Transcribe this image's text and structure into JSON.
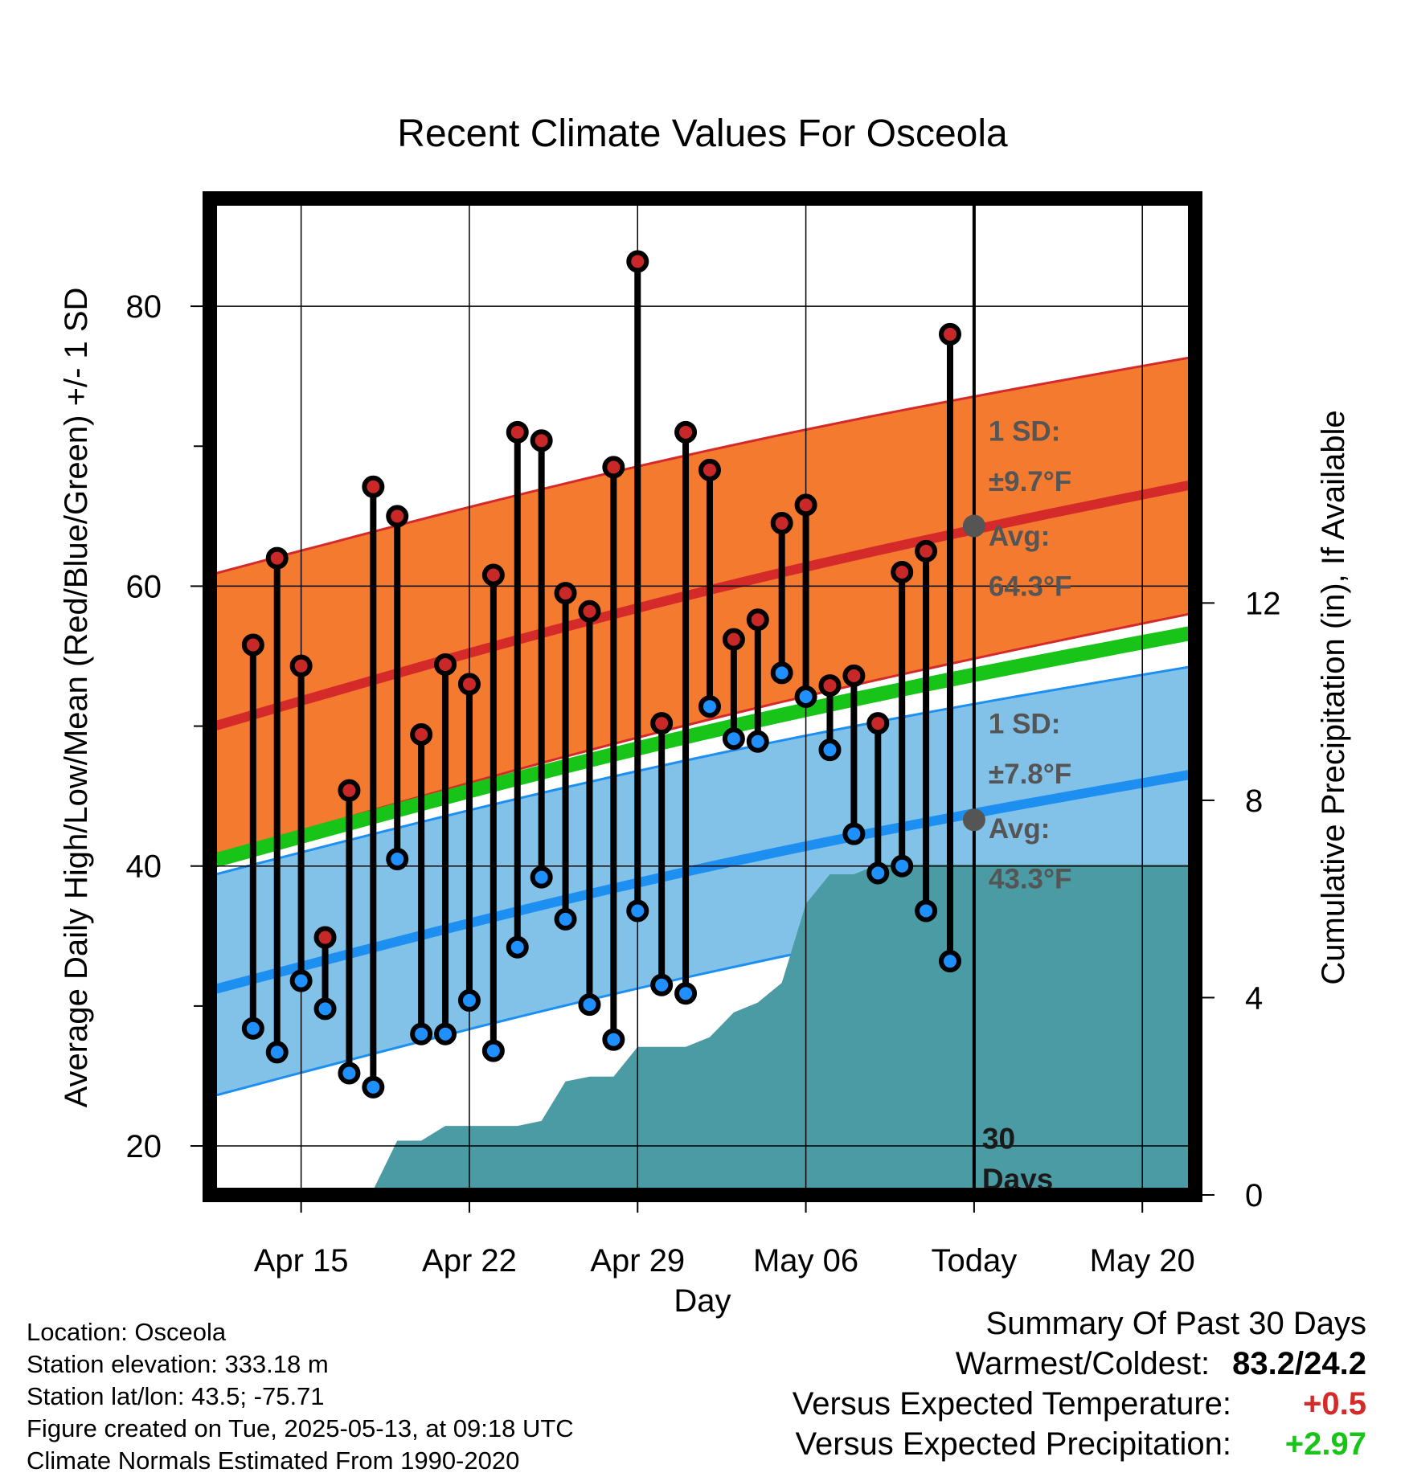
{
  "chart_data": {
    "type": "line",
    "title": "Recent Climate Values For Osceola",
    "xlabel": "Day",
    "ylabel": "Average Daily High/Low/Mean (Red/Blue/Green) +/- 1 SD",
    "ylabel_right": "Cumulative Precipitation (in), If Available",
    "x_tick_labels": [
      "Apr 15",
      "Apr 22",
      "Apr 29",
      "May 06",
      "Today",
      "May 20"
    ],
    "x_tick_days": [
      3,
      10,
      17,
      24,
      31,
      38
    ],
    "xlim_days": [
      -0.8,
      40.2
    ],
    "ylim": [
      16.5,
      87.7
    ],
    "y_ticks": [
      20,
      40,
      60,
      80
    ],
    "y_minor_ticks": [
      30,
      50,
      70
    ],
    "precip_ylim": [
      0,
      20.2
    ],
    "precip_ticks": [
      0,
      4,
      8,
      12
    ],
    "x_start_date": "Apr 12",
    "grid": true,
    "days": [
      1,
      2,
      3,
      4,
      5,
      6,
      7,
      8,
      9,
      10,
      11,
      12,
      13,
      14,
      15,
      16,
      17,
      18,
      19,
      20,
      21,
      22,
      23,
      24,
      25,
      26,
      27,
      28,
      29,
      30
    ],
    "daily_high": [
      55.8,
      62.0,
      54.3,
      34.9,
      45.4,
      67.1,
      65.0,
      49.4,
      54.4,
      53.0,
      60.8,
      71.0,
      70.4,
      59.5,
      58.2,
      68.5,
      83.2,
      50.2,
      71.0,
      68.3,
      56.2,
      57.6,
      64.5,
      65.8,
      52.9,
      53.6,
      50.2,
      61.0,
      62.5,
      78.0
    ],
    "daily_low": [
      28.4,
      26.7,
      31.8,
      29.8,
      25.2,
      24.2,
      40.5,
      28.0,
      28.0,
      30.4,
      26.8,
      34.2,
      39.2,
      36.2,
      30.1,
      27.6,
      36.8,
      31.5,
      30.9,
      51.4,
      49.1,
      48.9,
      53.8,
      52.1,
      48.3,
      42.3,
      39.5,
      40.0,
      36.8,
      33.2
    ],
    "normal": {
      "days": [
        -0.8,
        40.2
      ],
      "avg_high": [
        49.9,
        67.3
      ],
      "high_upper": [
        60.8,
        76.4
      ],
      "high_lower": [
        40.6,
        58.1
      ],
      "avg_mean": [
        40.3,
        56.7
      ],
      "avg_low": [
        31.1,
        46.6
      ],
      "low_upper": [
        39.3,
        54.3
      ],
      "low_lower": [
        23.5,
        39.1
      ]
    },
    "precip_cumulative": {
      "days": [
        -0.8,
        3.0,
        4.0,
        5.0,
        6.0,
        7.0,
        8.0,
        9.0,
        10.0,
        11.0,
        12.0,
        13.0,
        14.0,
        15.0,
        16.0,
        17.0,
        18.0,
        19.0,
        20.0,
        21.0,
        22.0,
        23.0,
        24.0,
        25.0,
        26.0,
        27.0,
        28.0,
        29.0,
        30.0,
        31.0,
        40.2
      ],
      "values": [
        0.0,
        0.0,
        0.1,
        0.1,
        0.1,
        1.1,
        1.1,
        1.4,
        1.4,
        1.4,
        1.4,
        1.5,
        2.3,
        2.4,
        2.4,
        3.0,
        3.0,
        3.0,
        3.2,
        3.7,
        3.9,
        4.3,
        5.9,
        6.5,
        6.5,
        6.7,
        6.7,
        6.7,
        6.7,
        6.7,
        6.7
      ]
    },
    "annotations": {
      "high_sd": "1 SD:",
      "high_sd_value": "±9.7°F",
      "high_avg": "Avg:",
      "high_avg_value": "64.3°F",
      "low_sd": "1 SD:",
      "low_sd_value": "±7.8°F",
      "low_avg": "Avg:",
      "low_avg_value": "43.3°F",
      "days_count": "30",
      "days_label": "Days"
    },
    "colors": {
      "high_band": "#f47a30",
      "high_line": "#d42a2a",
      "high_band_edge": "#d42a2a",
      "mean_line": "#19c419",
      "low_band": "#82c2e8",
      "low_line": "#1c8ff0",
      "low_band_edge": "#1c8ff0",
      "precip": "#4a9ba3",
      "high_marker": "#c82828",
      "low_marker": "#1e90ff",
      "avg_marker": "#555555",
      "annotation_text": "#555555"
    }
  },
  "station": {
    "location": "Location: Osceola",
    "elevation": "Station elevation: 333.18 m",
    "latlon": "Station lat/lon: 43.5; -75.71",
    "created": "Figure created on Tue, 2025-05-13, at 09:18 UTC",
    "normals": "Climate Normals Estimated From 1990-2020"
  },
  "summary": {
    "heading": "Summary Of Past 30 Days",
    "warm_cold_label": "Warmest/Coldest:",
    "warm_cold_value": "83.2/24.2",
    "temp_label": "Versus Expected Temperature:",
    "temp_value": "+0.5",
    "temp_color": "#d42a2a",
    "precip_label": "Versus Expected Precipitation:",
    "precip_value": "+2.97",
    "precip_color": "#19c419"
  }
}
